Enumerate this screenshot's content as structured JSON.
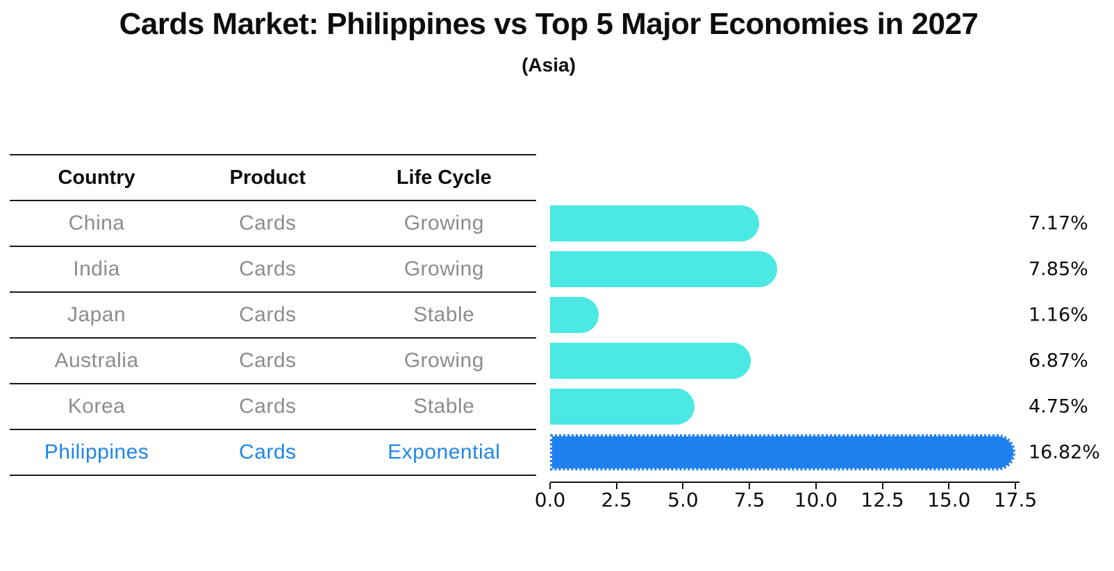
{
  "title": "Cards Market: Philippines vs Top 5 Major Economies in 2027",
  "subtitle": "(Asia)",
  "table": {
    "headers": [
      "Country",
      "Product",
      "Life Cycle"
    ],
    "rows": [
      {
        "country": "China",
        "product": "Cards",
        "life_cycle": "Growing",
        "highlight": false
      },
      {
        "country": "India",
        "product": "Cards",
        "life_cycle": "Growing",
        "highlight": false
      },
      {
        "country": "Japan",
        "product": "Cards",
        "life_cycle": "Stable",
        "highlight": false
      },
      {
        "country": "Australia",
        "product": "Cards",
        "life_cycle": "Growing",
        "highlight": false
      },
      {
        "country": "Korea",
        "product": "Cards",
        "life_cycle": "Stable",
        "highlight": false
      },
      {
        "country": "Philippines",
        "product": "Cards",
        "life_cycle": "Exponential",
        "highlight": true
      }
    ]
  },
  "chart_data": {
    "type": "bar",
    "orientation": "horizontal",
    "title": "Cards Market: Philippines vs Top 5 Major Economies in 2027",
    "subtitle": "(Asia)",
    "categories": [
      "China",
      "India",
      "Japan",
      "Australia",
      "Korea",
      "Philippines"
    ],
    "values": [
      7.17,
      7.85,
      1.16,
      6.87,
      4.75,
      16.82
    ],
    "value_labels": [
      "7.17%",
      "7.85%",
      "1.16%",
      "6.87%",
      "4.75%",
      "16.82%"
    ],
    "x_tick_labels": [
      "0.0",
      "2.5",
      "5.0",
      "7.5",
      "10.0",
      "12.5",
      "15.0",
      "17.5"
    ],
    "xlim": [
      0,
      17.5
    ],
    "grid": false,
    "legend": "none",
    "bar_color": "#4be8e4",
    "highlight_bar_color": "#1e7fef",
    "highlight_index": 5
  },
  "colors": {
    "bar_cyan": "#4be8e4",
    "bar_blue": "#1e7fef",
    "highlight_text": "#1f86e8",
    "row_text": "#8c8c8c",
    "line": "#1a1a1a"
  }
}
